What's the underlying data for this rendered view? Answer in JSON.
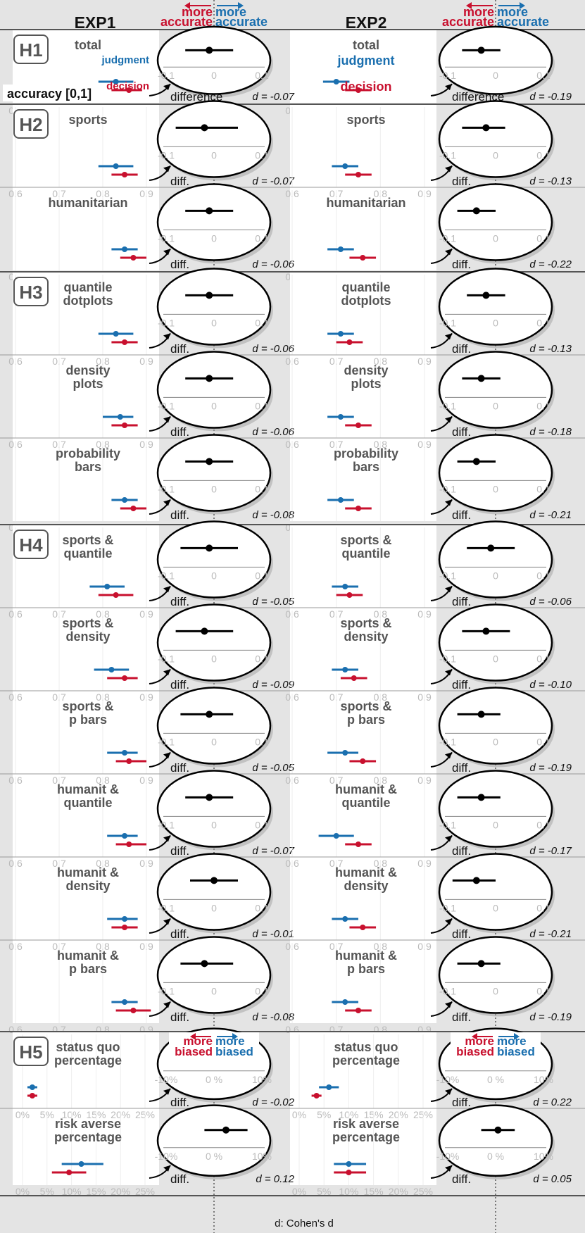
{
  "chart_data": {
    "type": "dot-interval forest plot with difference insets",
    "experiments": [
      "EXP1",
      "EXP2"
    ],
    "header": {
      "left_label": "more accurate",
      "right_label": "more accurate",
      "left_color": "#c8102e",
      "right_color": "#1a6faf"
    },
    "h5_header": {
      "left_label": "more biased",
      "right_label": "more biased"
    },
    "h1_labels": {
      "judgment": "judgment",
      "decision": "decision",
      "axis": "accuracy [0,1]",
      "difference": "difference"
    },
    "diff_label": "diff.",
    "accuracy_ticks": [
      "0.6",
      "0.7",
      "0.8",
      "0.9"
    ],
    "percent_ticks": [
      "0%",
      "5%",
      "10%",
      "15%",
      "20%",
      "25%"
    ],
    "diff_ticks_accuracy": [
      "-0.1",
      "0",
      "0.1"
    ],
    "diff_ticks_percent": [
      "-10%",
      "0 %",
      "10%"
    ],
    "footer": "d: Cohen's d",
    "colors": {
      "judgment": "#1a6faf",
      "decision": "#c8102e",
      "difference": "#000000"
    },
    "groups": [
      {
        "id": "H1",
        "label": "H1",
        "rows": [
          {
            "label": [
              "total"
            ],
            "kind": "accuracy",
            "exp": [
              {
                "j": [
                  0.83,
                  0.79,
                  0.87
                ],
                "dec": [
                  0.86,
                  0.82,
                  0.89
                ],
                "diff": [
                  -0.01,
                  -0.06,
                  0.04
                ],
                "d": "d = -0.07"
              },
              {
                "j": [
                  0.7,
                  0.67,
                  0.73
                ],
                "dec": [
                  0.75,
                  0.72,
                  0.78
                ],
                "diff": [
                  -0.03,
                  -0.07,
                  0.01
                ],
                "d": "d = -0.19"
              }
            ]
          }
        ]
      },
      {
        "id": "H2",
        "label": "H2",
        "rows": [
          {
            "label": [
              "sports"
            ],
            "kind": "accuracy",
            "exp": [
              {
                "j": [
                  0.83,
                  0.79,
                  0.87
                ],
                "dec": [
                  0.85,
                  0.82,
                  0.88
                ],
                "diff": [
                  -0.02,
                  -0.08,
                  0.05
                ],
                "d": "d = -0.07"
              },
              {
                "j": [
                  0.72,
                  0.69,
                  0.75
                ],
                "dec": [
                  0.75,
                  0.72,
                  0.78
                ],
                "diff": [
                  -0.02,
                  -0.07,
                  0.02
                ],
                "d": "d = -0.13"
              }
            ]
          },
          {
            "label": [
              "humanitarian"
            ],
            "kind": "accuracy",
            "exp": [
              {
                "j": [
                  0.85,
                  0.82,
                  0.88
                ],
                "dec": [
                  0.87,
                  0.84,
                  0.9
                ],
                "diff": [
                  -0.01,
                  -0.06,
                  0.04
                ],
                "d": "d = -0.06"
              },
              {
                "j": [
                  0.71,
                  0.68,
                  0.74
                ],
                "dec": [
                  0.76,
                  0.73,
                  0.79
                ],
                "diff": [
                  -0.04,
                  -0.08,
                  0.0
                ],
                "d": "d = -0.22"
              }
            ]
          }
        ]
      },
      {
        "id": "H3",
        "label": "H3",
        "rows": [
          {
            "label": [
              "quantile",
              "dotplots"
            ],
            "kind": "accuracy",
            "exp": [
              {
                "j": [
                  0.83,
                  0.79,
                  0.87
                ],
                "dec": [
                  0.85,
                  0.82,
                  0.88
                ],
                "diff": [
                  -0.01,
                  -0.06,
                  0.04
                ],
                "d": "d = -0.06"
              },
              {
                "j": [
                  0.71,
                  0.68,
                  0.74
                ],
                "dec": [
                  0.73,
                  0.7,
                  0.76
                ],
                "diff": [
                  -0.02,
                  -0.06,
                  0.02
                ],
                "d": "d = -0.13"
              }
            ]
          },
          {
            "label": [
              "density",
              "plots"
            ],
            "kind": "accuracy",
            "exp": [
              {
                "j": [
                  0.84,
                  0.8,
                  0.87
                ],
                "dec": [
                  0.85,
                  0.82,
                  0.88
                ],
                "diff": [
                  -0.01,
                  -0.06,
                  0.04
                ],
                "d": "d = -0.06"
              },
              {
                "j": [
                  0.71,
                  0.68,
                  0.74
                ],
                "dec": [
                  0.75,
                  0.72,
                  0.78
                ],
                "diff": [
                  -0.03,
                  -0.07,
                  0.01
                ],
                "d": "d = -0.18"
              }
            ]
          },
          {
            "label": [
              "probability",
              "bars"
            ],
            "kind": "accuracy",
            "exp": [
              {
                "j": [
                  0.85,
                  0.82,
                  0.88
                ],
                "dec": [
                  0.87,
                  0.84,
                  0.9
                ],
                "diff": [
                  -0.01,
                  -0.06,
                  0.04
                ],
                "d": "d = -0.08"
              },
              {
                "j": [
                  0.71,
                  0.68,
                  0.74
                ],
                "dec": [
                  0.75,
                  0.72,
                  0.78
                ],
                "diff": [
                  -0.04,
                  -0.08,
                  0.0
                ],
                "d": "d = -0.21"
              }
            ]
          }
        ]
      },
      {
        "id": "H4",
        "label": "H4",
        "rows": [
          {
            "label": [
              "sports &",
              "quantile"
            ],
            "kind": "accuracy",
            "exp": [
              {
                "j": [
                  0.81,
                  0.77,
                  0.85
                ],
                "dec": [
                  0.83,
                  0.79,
                  0.87
                ],
                "diff": [
                  -0.01,
                  -0.07,
                  0.05
                ],
                "d": "d = -0.05"
              },
              {
                "j": [
                  0.72,
                  0.69,
                  0.75
                ],
                "dec": [
                  0.73,
                  0.7,
                  0.76
                ],
                "diff": [
                  -0.01,
                  -0.06,
                  0.04
                ],
                "d": "d = -0.06"
              }
            ]
          },
          {
            "label": [
              "sports &",
              "density"
            ],
            "kind": "accuracy",
            "exp": [
              {
                "j": [
                  0.82,
                  0.78,
                  0.86
                ],
                "dec": [
                  0.85,
                  0.81,
                  0.88
                ],
                "diff": [
                  -0.02,
                  -0.08,
                  0.04
                ],
                "d": "d = -0.09"
              },
              {
                "j": [
                  0.72,
                  0.69,
                  0.75
                ],
                "dec": [
                  0.74,
                  0.71,
                  0.77
                ],
                "diff": [
                  -0.02,
                  -0.07,
                  0.03
                ],
                "d": "d = -0.10"
              }
            ]
          },
          {
            "label": [
              "sports &",
              "p bars"
            ],
            "kind": "accuracy",
            "exp": [
              {
                "j": [
                  0.85,
                  0.81,
                  0.88
                ],
                "dec": [
                  0.86,
                  0.83,
                  0.9
                ],
                "diff": [
                  -0.01,
                  -0.07,
                  0.04
                ],
                "d": "d = -0.05"
              },
              {
                "j": [
                  0.72,
                  0.68,
                  0.75
                ],
                "dec": [
                  0.76,
                  0.73,
                  0.79
                ],
                "diff": [
                  -0.03,
                  -0.08,
                  0.01
                ],
                "d": "d = -0.19"
              }
            ]
          },
          {
            "label": [
              "humanit &",
              "quantile"
            ],
            "kind": "accuracy",
            "exp": [
              {
                "j": [
                  0.85,
                  0.81,
                  0.88
                ],
                "dec": [
                  0.86,
                  0.83,
                  0.9
                ],
                "diff": [
                  -0.01,
                  -0.06,
                  0.04
                ],
                "d": "d = -0.07"
              },
              {
                "j": [
                  0.7,
                  0.66,
                  0.74
                ],
                "dec": [
                  0.75,
                  0.72,
                  0.78
                ],
                "diff": [
                  -0.03,
                  -0.08,
                  0.01
                ],
                "d": "d = -0.17"
              }
            ]
          },
          {
            "label": [
              "humanit &",
              "density"
            ],
            "kind": "accuracy",
            "exp": [
              {
                "j": [
                  0.85,
                  0.81,
                  0.88
                ],
                "dec": [
                  0.85,
                  0.82,
                  0.88
                ],
                "diff": [
                  0.0,
                  -0.05,
                  0.05
                ],
                "d": "d = -0.01"
              },
              {
                "j": [
                  0.72,
                  0.69,
                  0.75
                ],
                "dec": [
                  0.76,
                  0.73,
                  0.79
                ],
                "diff": [
                  -0.04,
                  -0.09,
                  0.0
                ],
                "d": "d = -0.21"
              }
            ]
          },
          {
            "label": [
              "humanit &",
              "p bars"
            ],
            "kind": "accuracy",
            "exp": [
              {
                "j": [
                  0.85,
                  0.82,
                  0.88
                ],
                "dec": [
                  0.87,
                  0.83,
                  0.91
                ],
                "diff": [
                  -0.02,
                  -0.07,
                  0.04
                ],
                "d": "d = -0.08"
              },
              {
                "j": [
                  0.72,
                  0.69,
                  0.75
                ],
                "dec": [
                  0.75,
                  0.72,
                  0.78
                ],
                "diff": [
                  -0.03,
                  -0.08,
                  0.01
                ],
                "d": "d = -0.19"
              }
            ]
          }
        ]
      },
      {
        "id": "H5",
        "label": "H5",
        "rows": [
          {
            "label": [
              "status quo",
              "percentage"
            ],
            "kind": "percent",
            "exp": [
              {
                "j": [
                  2.0,
                  1.0,
                  3.0
                ],
                "dec": [
                  2.0,
                  1.0,
                  3.0
                ],
                "diff": [
                  -0.2,
                  -1.5,
                  1.5
                ],
                "d": "d = -0.02"
              },
              {
                "j": [
                  6.0,
                  4.0,
                  8.0
                ],
                "dec": [
                  3.5,
                  2.5,
                  4.5
                ],
                "diff": [
                  2.0,
                  0.5,
                  3.5
                ],
                "d": "d = 0.22"
              }
            ]
          },
          {
            "label": [
              "risk averse",
              "percentage"
            ],
            "kind": "percent",
            "exp": [
              {
                "j": [
                  12.0,
                  8.0,
                  16.5
                ],
                "dec": [
                  9.5,
                  6.0,
                  13.0
                ],
                "diff": [
                  2.5,
                  -2.0,
                  7.0
                ],
                "d": "d = 0.12"
              },
              {
                "j": [
                  10.0,
                  7.0,
                  13.5
                ],
                "dec": [
                  10.0,
                  7.0,
                  13.5
                ],
                "diff": [
                  0.5,
                  -3.0,
                  4.0
                ],
                "d": "d = 0.05"
              }
            ]
          }
        ]
      }
    ]
  }
}
